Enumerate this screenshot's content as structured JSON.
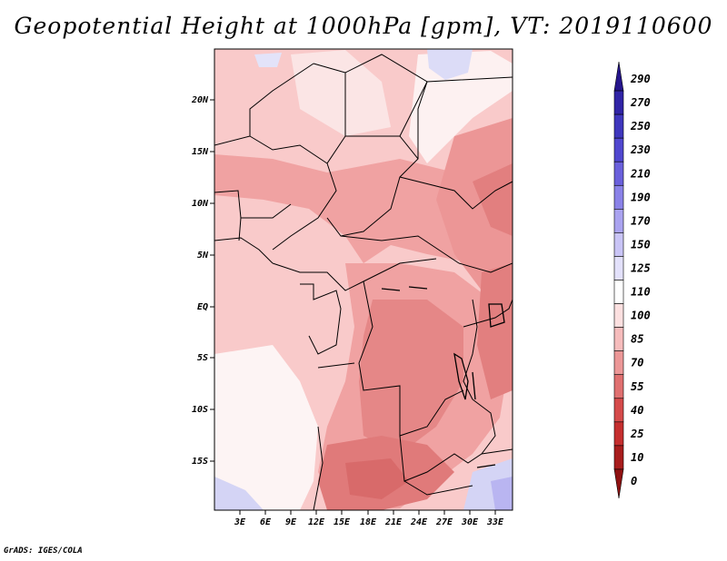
{
  "title": "Geopotential Height at 1000hPa [gpm], VT: 2019110600",
  "credit": "GrADS: IGES/COLA",
  "map": {
    "lat_ticks": [
      "20N",
      "15N",
      "10N",
      "5N",
      "EQ",
      "5S",
      "10S",
      "15S"
    ],
    "lon_ticks": [
      "3E",
      "6E",
      "9E",
      "12E",
      "15E",
      "18E",
      "21E",
      "24E",
      "27E",
      "30E",
      "33E"
    ]
  },
  "colorbar": {
    "levels": [
      "290",
      "270",
      "250",
      "230",
      "210",
      "190",
      "170",
      "150",
      "125",
      "110",
      "100",
      "85",
      "70",
      "55",
      "40",
      "25",
      "10",
      "0"
    ],
    "colors": [
      "#25158c",
      "#3024a6",
      "#3e36bd",
      "#5047cf",
      "#6a60dc",
      "#8a82e8",
      "#aaa3f0",
      "#c9c4f6",
      "#e3e1fb",
      "#ffffff",
      "#fce0e0",
      "#f6bcbc",
      "#ec9797",
      "#e07070",
      "#d54a4a",
      "#c52e2e",
      "#a81d1d",
      "#8f1111"
    ]
  },
  "colors": {
    "white_region": "#fdf4f4",
    "light_pink": "#f9caca",
    "mid_pink": "#f0a2a2",
    "dark_pink": "#e38383",
    "deep_pink": "#d66565",
    "light_blue": "#dcdcf7"
  }
}
